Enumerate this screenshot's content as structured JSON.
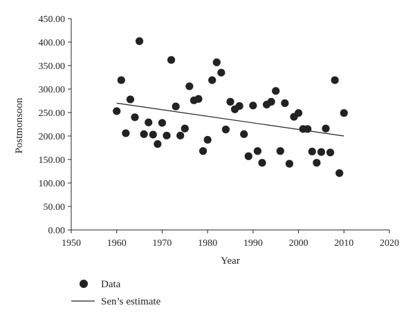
{
  "chart_data": {
    "type": "scatter",
    "xlabel": "Year",
    "ylabel": "Postmonsoon",
    "xlim": [
      1950,
      2020
    ],
    "ylim": [
      0,
      450
    ],
    "x_ticks": [
      1950,
      1960,
      1970,
      1980,
      1990,
      2000,
      2010,
      2020
    ],
    "y_ticks": [
      0,
      50,
      100,
      150,
      200,
      250,
      300,
      350,
      400,
      450
    ],
    "y_tick_labels": [
      "0.00",
      "50.00",
      "100.00",
      "150.00",
      "200.00",
      "250.00",
      "300.00",
      "350.00",
      "400.00",
      "450.00"
    ],
    "grid": false,
    "legend_position": "bottom-left",
    "series": [
      {
        "name": "Data",
        "kind": "points",
        "color": "#222222",
        "points": [
          [
            1960,
            253
          ],
          [
            1961,
            319
          ],
          [
            1962,
            206
          ],
          [
            1963,
            278
          ],
          [
            1964,
            240
          ],
          [
            1965,
            402
          ],
          [
            1966,
            204
          ],
          [
            1967,
            229
          ],
          [
            1968,
            203
          ],
          [
            1969,
            183
          ],
          [
            1970,
            228
          ],
          [
            1971,
            201
          ],
          [
            1972,
            362
          ],
          [
            1973,
            263
          ],
          [
            1974,
            201
          ],
          [
            1975,
            216
          ],
          [
            1976,
            306
          ],
          [
            1977,
            276
          ],
          [
            1978,
            279
          ],
          [
            1979,
            168
          ],
          [
            1980,
            192
          ],
          [
            1981,
            319
          ],
          [
            1982,
            357
          ],
          [
            1983,
            335
          ],
          [
            1984,
            214
          ],
          [
            1985,
            273
          ],
          [
            1986,
            257
          ],
          [
            1987,
            264
          ],
          [
            1988,
            204
          ],
          [
            1989,
            157
          ],
          [
            1990,
            265
          ],
          [
            1991,
            168
          ],
          [
            1992,
            143
          ],
          [
            1993,
            267
          ],
          [
            1994,
            273
          ],
          [
            1995,
            296
          ],
          [
            1996,
            168
          ],
          [
            1997,
            270
          ],
          [
            1998,
            141
          ],
          [
            1999,
            241
          ],
          [
            2000,
            249
          ],
          [
            2001,
            215
          ],
          [
            2002,
            215
          ],
          [
            2003,
            167
          ],
          [
            2004,
            143
          ],
          [
            2005,
            166
          ],
          [
            2006,
            216
          ],
          [
            2007,
            165
          ],
          [
            2008,
            319
          ],
          [
            2009,
            121
          ],
          [
            2010,
            249
          ]
        ]
      },
      {
        "name": "Sen's estimate",
        "kind": "line",
        "color": "#222222",
        "points": [
          [
            1960,
            270
          ],
          [
            2010,
            200
          ]
        ]
      }
    ]
  },
  "legend": {
    "items": [
      {
        "label": "Data",
        "marker": "circle"
      },
      {
        "label": "Sen’s estimate",
        "marker": "line"
      }
    ]
  }
}
